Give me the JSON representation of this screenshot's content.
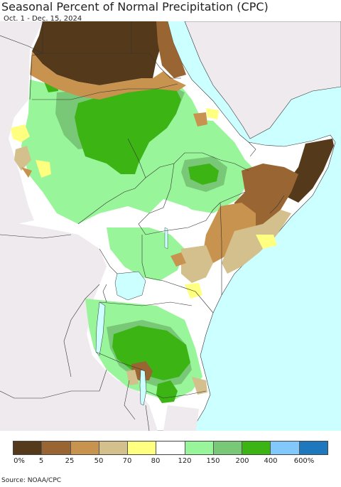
{
  "header": {
    "title": "Seasonal Percent of Normal Precipitation (CPC)",
    "subtitle": "Oct. 1 - Dec. 15, 2024"
  },
  "legend": {
    "colors": [
      "#54391a",
      "#996633",
      "#c8924f",
      "#d4c08c",
      "#ffff80",
      "#ffffff",
      "#99f599",
      "#78c878",
      "#3cb414",
      "#82c8fa",
      "#1e78be"
    ],
    "labels": [
      "0%",
      "5",
      "25",
      "50",
      "70",
      "80",
      "120",
      "150",
      "200",
      "400",
      "600%"
    ]
  },
  "map": {
    "land_color": "#ffffff",
    "water_color": "#ccffff",
    "outside_region_color": "#eeeaee"
  },
  "footer": {
    "source": "Source: NOAA/CPC"
  }
}
